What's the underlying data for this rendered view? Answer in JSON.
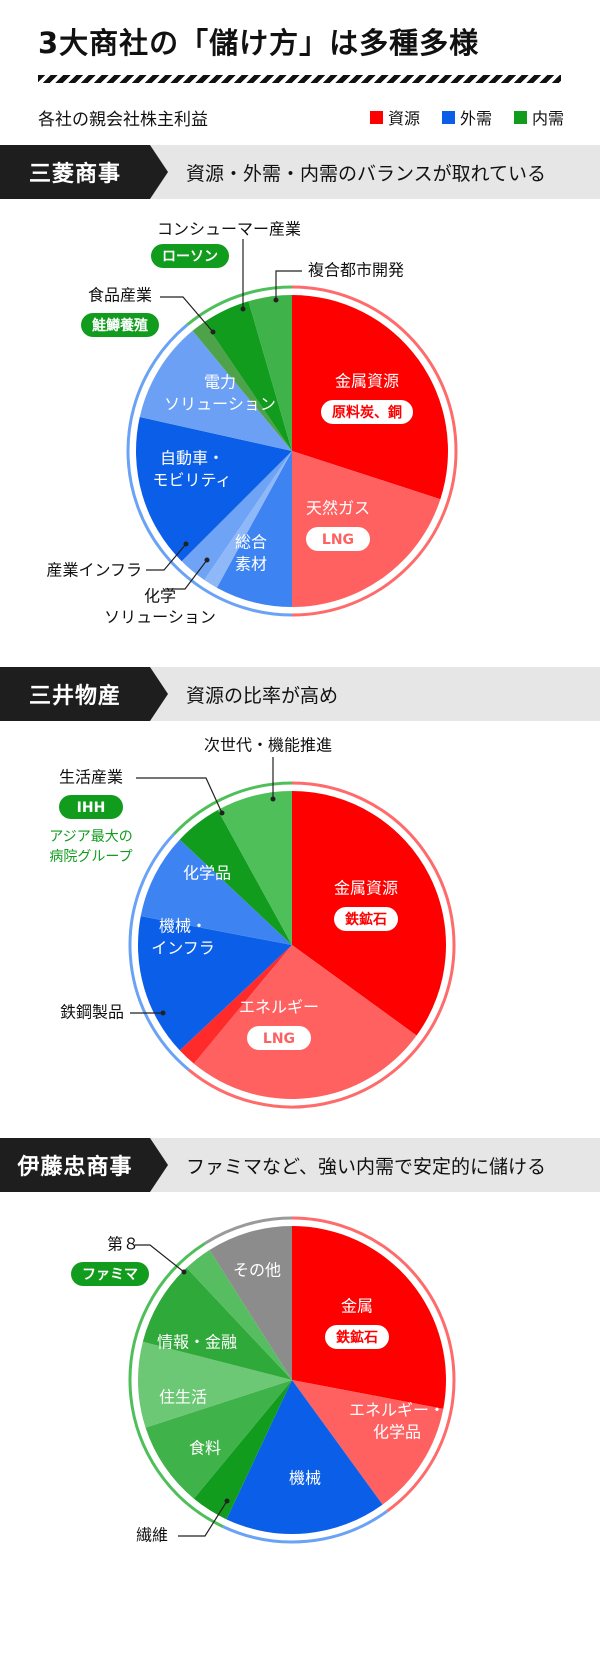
{
  "title": "3大商社の「儲け方」は多種多様",
  "subtitle": "各社の親会社株主利益",
  "legend": [
    {
      "label": "資源",
      "color": "#ff0000"
    },
    {
      "label": "外需",
      "color": "#0a5ee8"
    },
    {
      "label": "内需",
      "color": "#119c1e"
    }
  ],
  "sections": [
    {
      "company": "三菱商事",
      "description": "資源・外需・内需のバランスが取れている"
    },
    {
      "company": "三井物産",
      "description": "資源の比率が高め"
    },
    {
      "company": "伊藤忠商事",
      "description": "ファミマなど、強い内需で安定的に儲ける"
    }
  ],
  "chart_data": [
    {
      "type": "pie",
      "title": "三菱商事",
      "series": [
        {
          "name": "金属資源",
          "value": 30,
          "group": "資源",
          "color": "#ff0000",
          "text_color": "#ffffff",
          "tag": "原料炭、銅"
        },
        {
          "name": "天然ガス",
          "value": 20,
          "group": "資源",
          "color": "#ff6161",
          "text_color": "#ffffff",
          "tag": "LNG"
        },
        {
          "name": "総合素材",
          "value": 8,
          "group": "外需",
          "color": "#3d84f2",
          "text_color": "#ffffff"
        },
        {
          "name": "化学ソリューション",
          "value": 1.5,
          "group": "外需",
          "color": "#8fb8f8",
          "text_color": "#ffffff"
        },
        {
          "name": "産業インフラ",
          "value": 3,
          "group": "外需",
          "color": "#6fa3f6",
          "text_color": "#ffffff"
        },
        {
          "name": "自動車・モビリティ",
          "value": 16,
          "group": "外需",
          "color": "#0a5ee8",
          "text_color": "#ffffff"
        },
        {
          "name": "電力ソリューション",
          "value": 10.5,
          "group": "外需",
          "color": "#6ca0f5",
          "text_color": "#ffffff"
        },
        {
          "name": "食品産業",
          "value": 1.5,
          "group": "内需",
          "color": "#4ea24a",
          "text_color": "#ffffff",
          "tag": "鮭鱒養殖"
        },
        {
          "name": "コンシューマー産業",
          "value": 5,
          "group": "内需",
          "color": "#119c1e",
          "text_color": "#ffffff",
          "tag": "ローソン"
        },
        {
          "name": "複合都市開発",
          "value": 4.5,
          "group": "内需",
          "color": "#3fb24a",
          "text_color": "#ffffff"
        }
      ]
    },
    {
      "type": "pie",
      "title": "三井物産",
      "series": [
        {
          "name": "金属資源",
          "value": 35,
          "group": "資源",
          "color": "#ff0000",
          "text_color": "#ffffff",
          "tag": "鉄鉱石"
        },
        {
          "name": "エネルギー",
          "value": 26,
          "group": "資源",
          "color": "#ff6161",
          "text_color": "#ffffff",
          "tag": "LNG"
        },
        {
          "name": "鉄鋼製品",
          "value": 2,
          "group": "外需",
          "color": "#ff2a2a",
          "text_color": "#ffffff"
        },
        {
          "name": "機械・インフラ",
          "value": 15,
          "group": "外需",
          "color": "#0a5ee8",
          "text_color": "#ffffff"
        },
        {
          "name": "化学品",
          "value": 9,
          "group": "外需",
          "color": "#3d84f2",
          "text_color": "#ffffff"
        },
        {
          "name": "生活産業",
          "value": 5,
          "group": "内需",
          "color": "#119c1e",
          "text_color": "#ffffff",
          "tag": "IHH",
          "note": "アジア最大の病院グループ"
        },
        {
          "name": "次世代・機能推進",
          "value": 8,
          "group": "内需",
          "color": "#4fbf5a",
          "text_color": "#ffffff"
        }
      ]
    },
    {
      "type": "pie",
      "title": "伊藤忠商事",
      "series": [
        {
          "name": "金属",
          "value": 28,
          "group": "資源",
          "color": "#ff0000",
          "text_color": "#ffffff",
          "tag": "鉄鉱石"
        },
        {
          "name": "エネルギー・化学品",
          "value": 12,
          "group": "資源",
          "color": "#ff6161",
          "text_color": "#ffffff"
        },
        {
          "name": "機械",
          "value": 17,
          "group": "外需",
          "color": "#0a5ee8",
          "text_color": "#ffffff"
        },
        {
          "name": "繊維",
          "value": 4,
          "group": "内需",
          "color": "#119c1e",
          "text_color": "#ffffff"
        },
        {
          "name": "食料",
          "value": 9,
          "group": "内需",
          "color": "#3fb24a",
          "text_color": "#ffffff"
        },
        {
          "name": "住生活",
          "value": 9,
          "group": "内需",
          "color": "#6cc874",
          "text_color": "#ffffff"
        },
        {
          "name": "情報・金融",
          "value": 9,
          "group": "内需",
          "color": "#2fa93a",
          "text_color": "#ffffff"
        },
        {
          "name": "第８",
          "value": 3,
          "group": "内需",
          "color": "#57bd61",
          "text_color": "#ffffff",
          "tag": "ファミマ"
        },
        {
          "name": "その他",
          "value": 9,
          "group": "その他",
          "color": "#8c8c8c",
          "text_color": "#ffffff"
        }
      ]
    }
  ]
}
